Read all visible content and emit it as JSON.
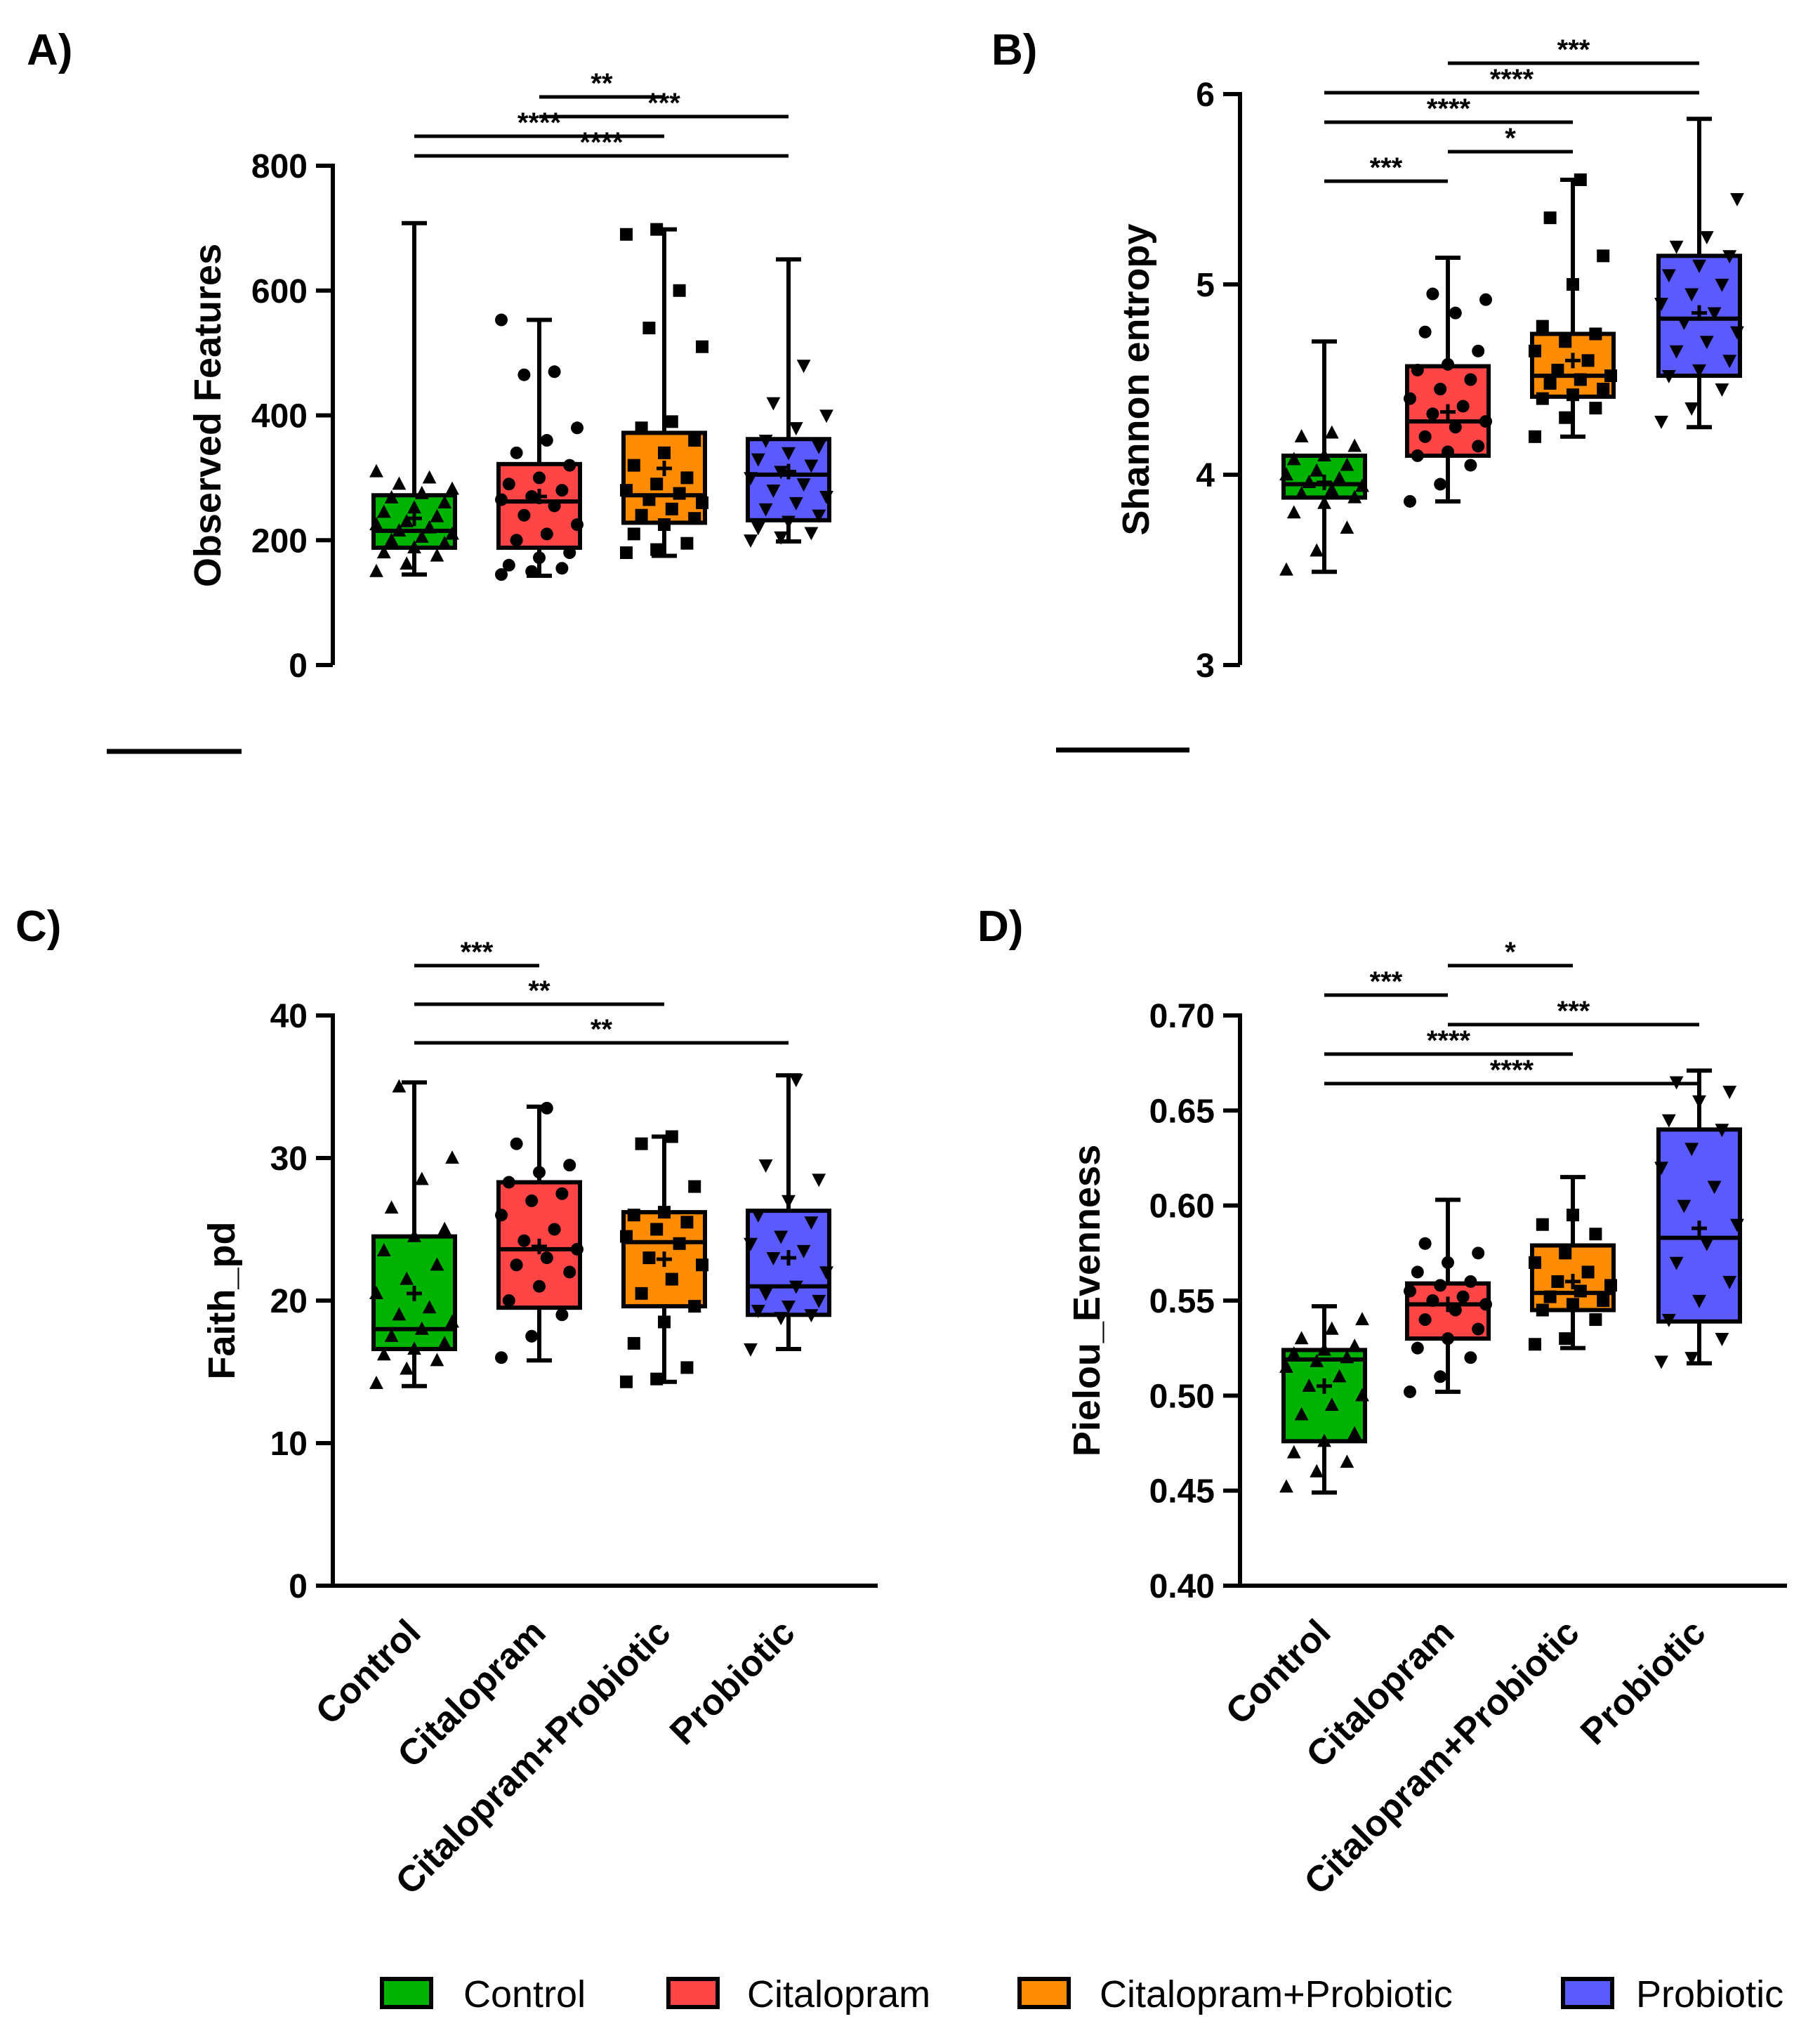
{
  "legend": {
    "entries": [
      {
        "label": "Control",
        "color": "#00b300"
      },
      {
        "label": "Citalopram",
        "color": "#ff4545"
      },
      {
        "label": "Citalopram+Probiotic",
        "color": "#ff8c00"
      },
      {
        "label": "Probiotic",
        "color": "#5a5aff"
      }
    ]
  },
  "chart_data": [
    {
      "type": "box",
      "panel_label": "A)",
      "ylabel": "Observed Features",
      "ylim": [
        0,
        800
      ],
      "yticks": [
        0,
        200,
        400,
        600,
        800
      ],
      "ytick_labels": [
        "0",
        "200",
        "400",
        "600",
        "800"
      ],
      "categories": [
        "Control",
        "Citalopram",
        "Citalopram+Probiotic",
        "Probiotic"
      ],
      "show_xlabels": false,
      "boxes": [
        {
          "min": 145,
          "q1": 188,
          "median": 215,
          "q3": 272,
          "max": 708,
          "mean": 235
        },
        {
          "min": 143,
          "q1": 188,
          "median": 262,
          "q3": 322,
          "max": 553,
          "mean": 270
        },
        {
          "min": 175,
          "q1": 228,
          "median": 272,
          "q3": 372,
          "max": 698,
          "mean": 315
        },
        {
          "min": 198,
          "q1": 232,
          "median": 305,
          "q3": 362,
          "max": 650,
          "mean": 310
        }
      ],
      "points": [
        [
          150,
          162,
          175,
          180,
          188,
          195,
          200,
          205,
          210,
          215,
          220,
          225,
          230,
          238,
          245,
          252,
          260,
          268,
          275,
          282,
          290,
          300,
          310
        ],
        [
          145,
          150,
          155,
          160,
          172,
          180,
          200,
          210,
          225,
          240,
          255,
          265,
          270,
          280,
          290,
          300,
          320,
          340,
          360,
          380,
          465,
          470,
          553
        ],
        [
          180,
          185,
          195,
          210,
          225,
          235,
          240,
          250,
          260,
          265,
          275,
          280,
          290,
          300,
          320,
          340,
          360,
          380,
          390,
          510,
          540,
          600,
          690,
          698
        ],
        [
          200,
          205,
          212,
          220,
          230,
          240,
          250,
          260,
          270,
          280,
          290,
          300,
          310,
          320,
          330,
          340,
          350,
          360,
          380,
          400,
          420,
          480
        ]
      ],
      "significance": [
        {
          "from": 1,
          "to": 2,
          "label": "**"
        },
        {
          "from": 1,
          "to": 3,
          "label": "***"
        },
        {
          "from": 0,
          "to": 2,
          "label": "****"
        },
        {
          "from": 0,
          "to": 3,
          "label": "****"
        }
      ]
    },
    {
      "type": "box",
      "panel_label": "B)",
      "ylabel": "Shannon entropy",
      "ylim": [
        3,
        6
      ],
      "yticks": [
        3,
        4,
        5,
        6
      ],
      "ytick_labels": [
        "3",
        "4",
        "5",
        "6"
      ],
      "categories": [
        "Control",
        "Citalopram",
        "Citalopram+Probiotic",
        "Probiotic"
      ],
      "show_xlabels": false,
      "boxes": [
        {
          "min": 3.49,
          "q1": 3.88,
          "median": 3.95,
          "q3": 4.1,
          "max": 4.7,
          "mean": 3.96
        },
        {
          "min": 3.86,
          "q1": 4.1,
          "median": 4.28,
          "q3": 4.57,
          "max": 5.14,
          "mean": 4.33
        },
        {
          "min": 4.2,
          "q1": 4.41,
          "median": 4.52,
          "q3": 4.74,
          "max": 5.55,
          "mean": 4.6
        },
        {
          "min": 4.25,
          "q1": 4.52,
          "median": 4.82,
          "q3": 5.15,
          "max": 5.87,
          "mean": 4.85
        }
      ],
      "points": [
        [
          3.5,
          3.6,
          3.72,
          3.8,
          3.85,
          3.88,
          3.9,
          3.92,
          3.94,
          3.96,
          3.98,
          4.0,
          4.02,
          4.05,
          4.08,
          4.1,
          4.15,
          4.2,
          4.22
        ],
        [
          3.86,
          3.95,
          4.05,
          4.1,
          4.12,
          4.15,
          4.2,
          4.25,
          4.28,
          4.32,
          4.36,
          4.4,
          4.45,
          4.5,
          4.55,
          4.58,
          4.65,
          4.75,
          4.85,
          4.92,
          4.95
        ],
        [
          4.2,
          4.3,
          4.35,
          4.4,
          4.42,
          4.45,
          4.48,
          4.5,
          4.52,
          4.55,
          4.6,
          4.65,
          4.7,
          4.74,
          4.78,
          5.0,
          5.15,
          5.35,
          5.55
        ],
        [
          4.28,
          4.35,
          4.45,
          4.52,
          4.55,
          4.6,
          4.65,
          4.7,
          4.75,
          4.8,
          4.85,
          4.9,
          4.95,
          5.0,
          5.05,
          5.1,
          5.15,
          5.2,
          5.25,
          5.45
        ]
      ],
      "significance": [
        {
          "from": 1,
          "to": 3,
          "label": "***"
        },
        {
          "from": 0,
          "to": 3,
          "label": "****"
        },
        {
          "from": 0,
          "to": 2,
          "label": "****"
        },
        {
          "from": 1,
          "to": 2,
          "label": "*"
        },
        {
          "from": 0,
          "to": 1,
          "label": "***"
        }
      ]
    },
    {
      "type": "box",
      "panel_label": "C)",
      "ylabel": "Faith_pd",
      "ylim": [
        0,
        40
      ],
      "yticks": [
        0,
        10,
        20,
        30,
        40
      ],
      "ytick_labels": [
        "0",
        "10",
        "20",
        "30",
        "40"
      ],
      "categories": [
        "Control",
        "Citalopram",
        "Citalopram+Probiotic",
        "Probiotic"
      ],
      "show_xlabels": true,
      "boxes": [
        {
          "min": 14,
          "q1": 16.6,
          "median": 18,
          "q3": 24.5,
          "max": 35.3,
          "mean": 20.5
        },
        {
          "min": 15.8,
          "q1": 19.5,
          "median": 23.6,
          "q3": 28.3,
          "max": 33.6,
          "mean": 23.8
        },
        {
          "min": 14.3,
          "q1": 19.6,
          "median": 24.1,
          "q3": 26.2,
          "max": 31.5,
          "mean": 22.9
        },
        {
          "min": 16.6,
          "q1": 19,
          "median": 21,
          "q3": 26.3,
          "max": 35.8,
          "mean": 23
        }
      ],
      "points": [
        [
          14.2,
          15.2,
          15.8,
          16.2,
          16.6,
          17.0,
          17.5,
          18.0,
          18.5,
          19.0,
          19.5,
          20.5,
          21.5,
          22.5,
          23.5,
          24.5,
          25.0,
          26.5,
          28.5,
          30.0,
          35.0
        ],
        [
          16.0,
          17.5,
          19.0,
          20.0,
          21.0,
          22.0,
          22.5,
          23.0,
          23.6,
          24.2,
          25.0,
          26.0,
          27.0,
          27.5,
          28.3,
          29.0,
          29.5,
          31.0,
          33.5
        ],
        [
          14.3,
          14.5,
          15.3,
          17.0,
          18.5,
          19.6,
          20.5,
          21.5,
          22.5,
          23.0,
          24.0,
          24.5,
          25.0,
          25.5,
          26.0,
          26.2,
          28.0,
          31.0,
          31.5
        ],
        [
          16.6,
          18.8,
          19.0,
          19.3,
          19.6,
          20.0,
          20.5,
          21.0,
          22.0,
          23.0,
          23.5,
          24.0,
          24.5,
          25.5,
          26.0,
          27.0,
          28.5,
          29.5,
          35.5
        ]
      ],
      "significance": [
        {
          "from": 0,
          "to": 1,
          "label": "***"
        },
        {
          "from": 0,
          "to": 2,
          "label": "**"
        },
        {
          "from": 0,
          "to": 3,
          "label": "**"
        }
      ]
    },
    {
      "type": "box",
      "panel_label": "D)",
      "ylabel": "Pielou_Evenness",
      "ylim": [
        0.4,
        0.7
      ],
      "yticks": [
        0.4,
        0.45,
        0.5,
        0.55,
        0.6,
        0.65,
        0.7
      ],
      "ytick_labels": [
        "0.40",
        "0.45",
        "0.50",
        "0.55",
        "0.60",
        "0.65",
        "0.70"
      ],
      "categories": [
        "Control",
        "Citalopram",
        "Citalopram+Probiotic",
        "Probiotic"
      ],
      "show_xlabels": true,
      "boxes": [
        {
          "min": 0.449,
          "q1": 0.476,
          "median": 0.519,
          "q3": 0.524,
          "max": 0.547,
          "mean": 0.505
        },
        {
          "min": 0.502,
          "q1": 0.53,
          "median": 0.548,
          "q3": 0.559,
          "max": 0.603,
          "mean": 0.548
        },
        {
          "min": 0.525,
          "q1": 0.545,
          "median": 0.554,
          "q3": 0.579,
          "max": 0.615,
          "mean": 0.56
        },
        {
          "min": 0.517,
          "q1": 0.539,
          "median": 0.583,
          "q3": 0.64,
          "max": 0.671,
          "mean": 0.588
        }
      ],
      "points": [
        [
          0.452,
          0.46,
          0.465,
          0.47,
          0.476,
          0.48,
          0.49,
          0.495,
          0.5,
          0.505,
          0.51,
          0.515,
          0.518,
          0.52,
          0.522,
          0.524,
          0.526,
          0.53,
          0.535,
          0.54
        ],
        [
          0.502,
          0.51,
          0.52,
          0.525,
          0.53,
          0.535,
          0.54,
          0.545,
          0.548,
          0.55,
          0.552,
          0.555,
          0.558,
          0.56,
          0.565,
          0.57,
          0.575,
          0.58
        ],
        [
          0.527,
          0.53,
          0.54,
          0.545,
          0.548,
          0.55,
          0.552,
          0.555,
          0.558,
          0.56,
          0.565,
          0.57,
          0.575,
          0.585,
          0.59,
          0.595
        ],
        [
          0.518,
          0.52,
          0.53,
          0.54,
          0.55,
          0.56,
          0.57,
          0.58,
          0.59,
          0.6,
          0.61,
          0.62,
          0.63,
          0.64,
          0.645,
          0.655,
          0.66,
          0.665
        ]
      ],
      "significance": [
        {
          "from": 1,
          "to": 2,
          "label": "*"
        },
        {
          "from": 0,
          "to": 1,
          "label": "***"
        },
        {
          "from": 1,
          "to": 3,
          "label": "***"
        },
        {
          "from": 0,
          "to": 2,
          "label": "****"
        },
        {
          "from": 0,
          "to": 3,
          "label": "****"
        }
      ]
    }
  ]
}
